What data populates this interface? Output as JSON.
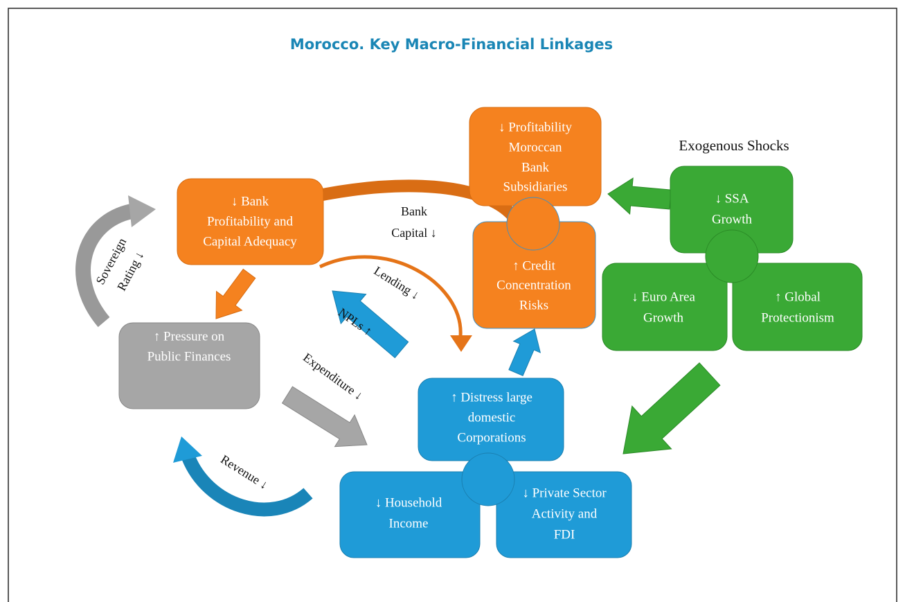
{
  "header": {
    "title": "Morocco. Key Macro-Financial Linkages",
    "group_label": "Exogenous Shocks"
  },
  "nodes": [
    {
      "lines": [
        "↓ Profitability",
        "Moroccan",
        "Bank",
        "Subsidiaries"
      ]
    },
    {
      "lines": [
        "↓ Bank",
        "Profitability and",
        "Capital Adequacy"
      ]
    },
    {
      "lines": [
        "↑ Credit",
        "Concentration",
        "Risks"
      ]
    },
    {
      "lines": [
        "↑ Pressure on",
        "Public Finances"
      ]
    },
    {
      "lines": [
        "↓ SSA",
        "Growth"
      ]
    },
    {
      "lines": [
        "↓ Euro Area",
        "Growth"
      ]
    },
    {
      "lines": [
        "↑ Global",
        "Protectionism"
      ]
    },
    {
      "lines": [
        "↑ Distress large",
        "domestic",
        "Corporations"
      ]
    },
    {
      "lines": [
        "↓ Household",
        "Income"
      ]
    },
    {
      "lines": [
        "↓ Private Sector",
        "Activity and",
        "FDI"
      ]
    }
  ],
  "edges": [
    {
      "lines": [
        "Bank",
        "Capital ↓"
      ]
    },
    {
      "lines": [
        "Lending ↓"
      ]
    },
    {
      "lines": [
        "NPLs ↑"
      ]
    },
    {
      "lines": [
        "Expenditure ↓"
      ]
    },
    {
      "lines": [
        "Revenue ↓"
      ]
    },
    {
      "lines": [
        "Sovereign",
        "Rating ↓"
      ]
    }
  ]
}
